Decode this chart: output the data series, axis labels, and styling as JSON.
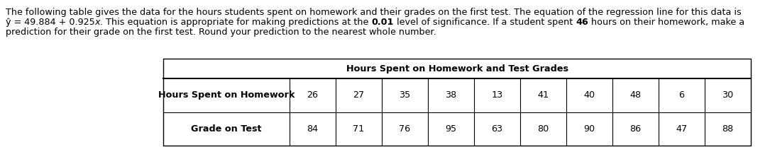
{
  "line1": "The following table gives the data for the hours students spent on homework and their grades on the first test. The equation of the regression line for this data is",
  "line2_seg1": "ŷ = 49.884 + 0.925",
  "line2_seg2": "x",
  "line2_seg3": ". This equation is appropriate for making predictions at the ",
  "line2_bold1": "0.01",
  "line2_seg4": " level of significance. If a student spent ",
  "line2_bold2": "46",
  "line2_seg5": " hours on their homework, make a",
  "line3": "prediction for their grade on the first test. Round your prediction to the nearest whole number.",
  "table_title": "Hours Spent on Homework and Test Grades",
  "row1_label": "Hours Spent on Homework",
  "row2_label": "Grade on Test",
  "hours": [
    26,
    27,
    35,
    38,
    13,
    41,
    40,
    48,
    6,
    30
  ],
  "grades": [
    84,
    71,
    76,
    95,
    63,
    80,
    90,
    86,
    47,
    88
  ],
  "bg_color": "#ffffff",
  "text_color": "#000000",
  "font_size": 9.2,
  "table_font_size": 9.2
}
